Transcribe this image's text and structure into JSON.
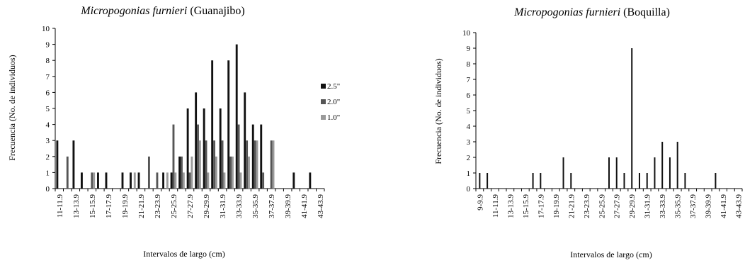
{
  "chart_data": [
    {
      "type": "bar",
      "title_species": "Micropogonias furnieri",
      "title_site": "(Guanajibo)",
      "ylabel": "Frecuencia (No. de individuos)",
      "xlabel": "Intervalos de largo (cm)",
      "ylim": [
        0,
        10
      ],
      "yticks": [
        "0",
        "1",
        "2",
        "3",
        "4",
        "5",
        "6",
        "7",
        "8",
        "9",
        "10"
      ],
      "categories": [
        "11-11.9",
        "12-12.9",
        "13-13.9",
        "14-14.9",
        "15-15.9",
        "16-16.9",
        "17-17.9",
        "18-18.9",
        "19-19.9",
        "20-20.9",
        "21-21.9",
        "22-22.9",
        "23-23.9",
        "24-24.9",
        "25-25.9",
        "26-26.9",
        "27-27.9",
        "28-28.9",
        "29-29.9",
        "30-30.9",
        "31-31.9",
        "32-32.9",
        "33-33.9",
        "34-34.9",
        "35-35.9",
        "36-36.9",
        "37-37.9",
        "38-38.9",
        "39-39.9",
        "40-40.9",
        "41-41.9",
        "42-42.9",
        "43-43.9"
      ],
      "tick_labels": [
        "11-11.9",
        "13-13.9",
        "15-15.9",
        "17-17.9",
        "19-19.9",
        "21-21.9",
        "23-23.9",
        "25-25.9",
        "27-27.9",
        "29-29.9",
        "31-31.9",
        "33-33.9",
        "35-35.9",
        "37-37.9",
        "39-39.9",
        "41-41.9",
        "43-43.9"
      ],
      "legend_position": "right",
      "series": [
        {
          "name": "2.5\"",
          "color": "#111111",
          "values": [
            3,
            0,
            3,
            1,
            0,
            1,
            1,
            0,
            1,
            1,
            1,
            0,
            0,
            1,
            1,
            2,
            5,
            6,
            5,
            8,
            5,
            8,
            9,
            6,
            4,
            4,
            0,
            0,
            0,
            1,
            0,
            1,
            0
          ]
        },
        {
          "name": "2.0\"",
          "color": "#555555",
          "values": [
            0,
            2,
            0,
            0,
            1,
            0,
            0,
            0,
            0,
            0,
            0,
            2,
            1,
            0,
            4,
            2,
            1,
            4,
            3,
            3,
            3,
            2,
            4,
            3,
            3,
            1,
            3,
            0,
            0,
            0,
            0,
            0,
            0
          ]
        },
        {
          "name": "1.0\"",
          "color": "#9a9a9a",
          "values": [
            0,
            0,
            0,
            0,
            1,
            0,
            0,
            0,
            0,
            1,
            0,
            0,
            0,
            1,
            1,
            1,
            2,
            3,
            1,
            2,
            1,
            2,
            1,
            2,
            3,
            0,
            3,
            0,
            0,
            0,
            0,
            0,
            0
          ]
        }
      ]
    },
    {
      "type": "bar",
      "title_species": "Micropogonias furnieri",
      "title_site": "(Boquilla)",
      "ylabel": "Frecuencia (No. de individuos)",
      "xlabel": "Intervalos de largo (cm)",
      "ylim": [
        0,
        10
      ],
      "yticks": [
        "0",
        "1",
        "2",
        "3",
        "4",
        "5",
        "6",
        "7",
        "8",
        "9",
        "10"
      ],
      "categories": [
        "9-9.9",
        "10-10.9",
        "11-11.9",
        "12-12.9",
        "13-13.9",
        "14-14.9",
        "15-15.9",
        "16-16.9",
        "17-17.9",
        "18-18.9",
        "19-19.9",
        "20-20.9",
        "21-21.9",
        "22-22.9",
        "23-23.9",
        "24-24.9",
        "25-25.9",
        "26-26.9",
        "27-27.9",
        "28-28.9",
        "29-29.9",
        "30-30.9",
        "31-31.9",
        "32-32.9",
        "33-33.9",
        "34-34.9",
        "35-35.9",
        "36-36.9",
        "37-37.9",
        "38-38.9",
        "39-39.9",
        "40-40.9",
        "41-41.9",
        "42-42.9",
        "43-43.9"
      ],
      "tick_labels": [
        "9-9.9",
        "11-11.9",
        "13-13.9",
        "15-15.9",
        "17-17.9",
        "19-19.9",
        "21-21.9",
        "23-23.9",
        "25-25.9",
        "27-27.9",
        "29-29.9",
        "31-31.9",
        "33-33.9",
        "35-35.9",
        "37-37.9",
        "39-39.9",
        "41-41.9",
        "43-43.9"
      ],
      "series": [
        {
          "color": "#111111",
          "values": [
            1,
            1,
            0,
            0,
            0,
            0,
            0,
            1,
            1,
            0,
            0,
            2,
            1,
            0,
            0,
            0,
            0,
            2,
            2,
            1,
            9,
            1,
            1,
            2,
            3,
            2,
            3,
            1,
            0,
            0,
            0,
            1,
            0,
            0,
            0
          ]
        }
      ]
    }
  ]
}
